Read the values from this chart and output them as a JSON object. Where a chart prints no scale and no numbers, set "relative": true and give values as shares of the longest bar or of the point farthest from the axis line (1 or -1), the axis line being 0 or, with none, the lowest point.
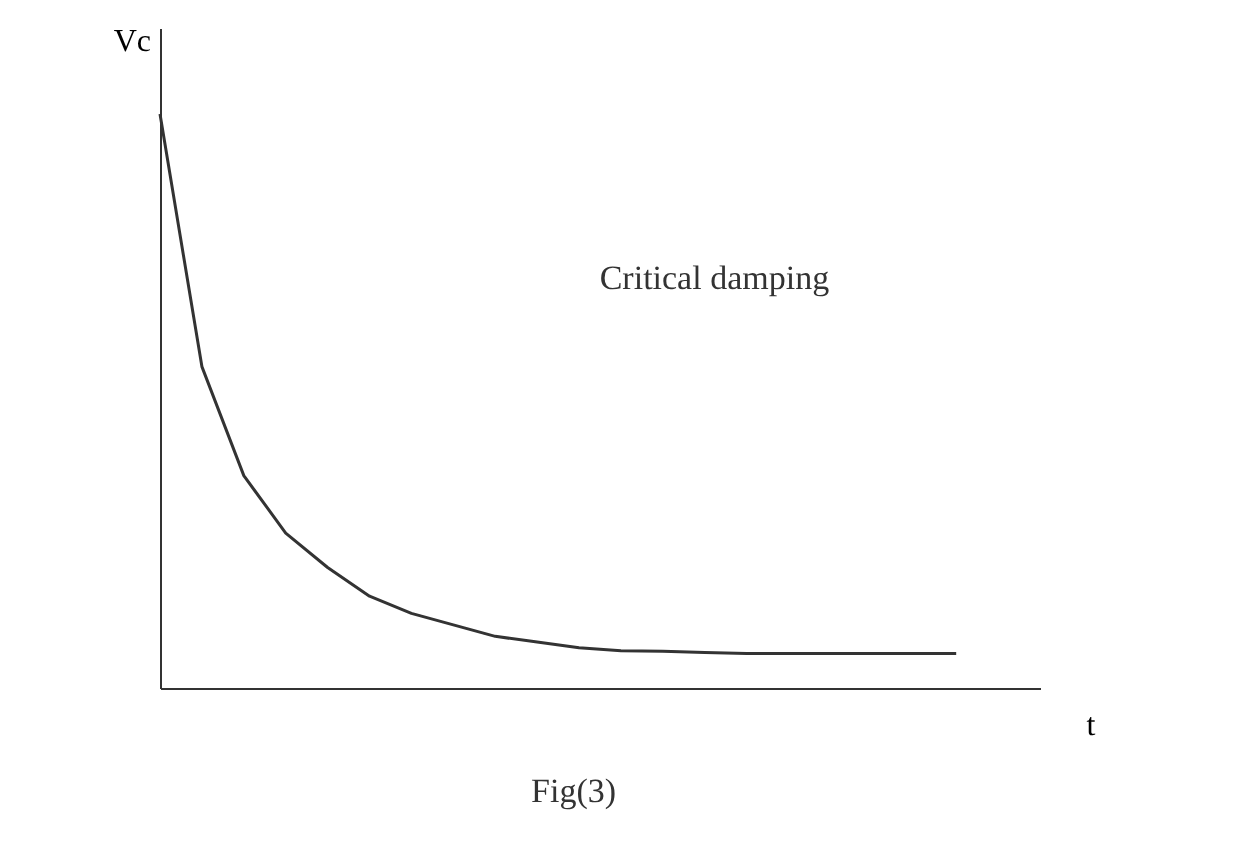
{
  "chart_data": {
    "type": "line",
    "relative": true,
    "xlabel": "t",
    "ylabel": "Vc",
    "categories": [
      null,
      null,
      null,
      null,
      null,
      null,
      null,
      null,
      null,
      null,
      null,
      null,
      null,
      null,
      null,
      null,
      null,
      null,
      null,
      null
    ],
    "series": [
      {
        "color": "#333333",
        "values": [
          1.0,
          0.56,
          0.37,
          0.27,
          0.21,
          0.16,
          0.13,
          0.11,
          0.09,
          0.08,
          0.07,
          0.065,
          0.064,
          0.062,
          0.06,
          0.06,
          0.06,
          0.06,
          0.06,
          0.06
        ]
      }
    ],
    "annotations": [
      "Critical damping",
      "Fig(3)"
    ],
    "grid": false,
    "marker": "none",
    "line_style": "solid"
  }
}
